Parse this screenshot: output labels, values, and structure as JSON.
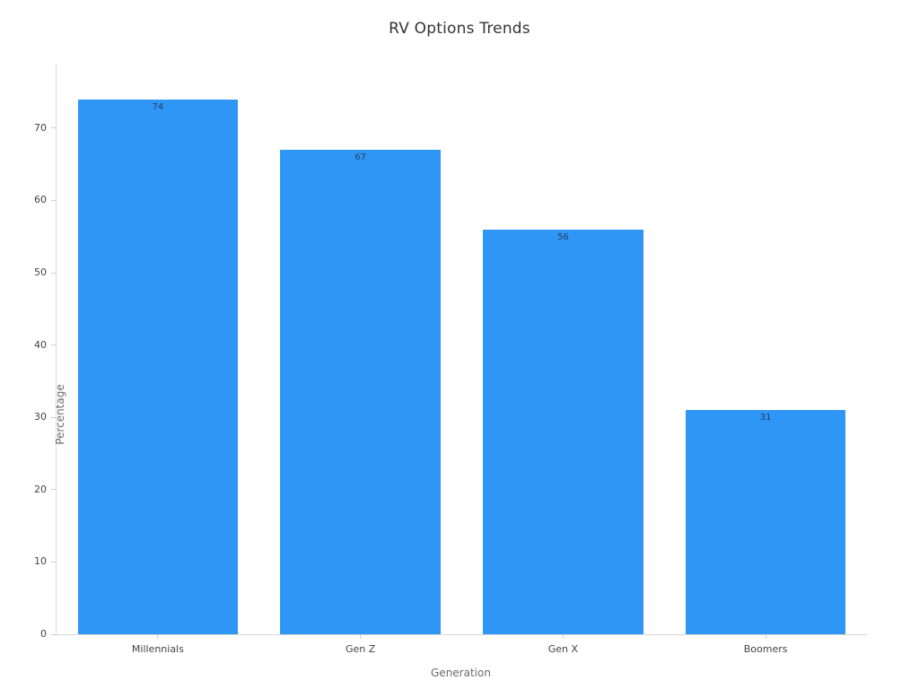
{
  "chart_data": {
    "type": "bar",
    "title": "RV Options Trends",
    "xlabel": "Generation",
    "ylabel": "Percentage",
    "categories": [
      "Millennials",
      "Gen Z",
      "Gen X",
      "Boomers"
    ],
    "values": [
      74,
      67,
      56,
      31
    ],
    "value_labels": [
      "74",
      "67",
      "56",
      "31"
    ],
    "yticks": [
      0,
      10,
      20,
      30,
      40,
      50,
      60,
      70
    ],
    "ylim": [
      0,
      78.8
    ],
    "grid": false,
    "legend": "none",
    "colors": {
      "bar_fill": "#2e96f5",
      "value_label": "#2a3f5f",
      "axis_line": "#d9d9d9",
      "tick_mark": "#cccccc",
      "tick_label": "#444444",
      "axis_title": "#6b6b6b",
      "title": "#333333"
    }
  }
}
